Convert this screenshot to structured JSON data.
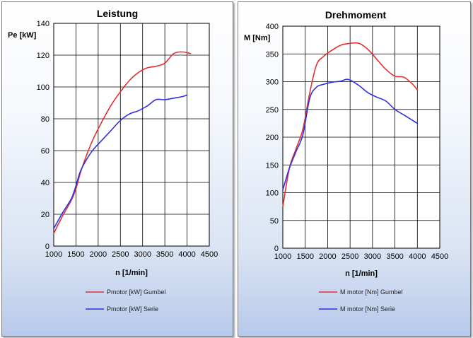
{
  "chart_data": [
    {
      "type": "line",
      "title": "Leistung",
      "xlabel": "n [1/min]",
      "ylabel": "Pe [kW]",
      "xlim": [
        1000,
        4500
      ],
      "ylim": [
        0,
        140
      ],
      "xticks": [
        1000,
        1500,
        2000,
        2500,
        3000,
        3500,
        4000,
        4500
      ],
      "yticks": [
        0,
        20,
        40,
        60,
        80,
        100,
        120,
        140
      ],
      "legend_position": "bottom-center",
      "grid": true,
      "series": [
        {
          "name": "Pmotor [kW] Gumbel",
          "color": "#e03030",
          "x": [
            1000,
            1200,
            1400,
            1500,
            1600,
            1750,
            1900,
            2100,
            2300,
            2500,
            2700,
            2900,
            3100,
            3300,
            3500,
            3700,
            3900,
            4080
          ],
          "y": [
            8,
            19,
            29,
            36,
            46,
            58,
            68,
            79,
            89,
            97,
            104,
            109,
            112,
            113,
            115,
            121,
            122,
            121
          ]
        },
        {
          "name": "Pmotor [kW] Serie",
          "color": "#3030e0",
          "x": [
            1000,
            1200,
            1400,
            1500,
            1600,
            1750,
            1900,
            2100,
            2300,
            2500,
            2700,
            2900,
            3100,
            3300,
            3500,
            3700,
            3900,
            4000
          ],
          "y": [
            11,
            21,
            30,
            38,
            47,
            55,
            61,
            67,
            73,
            79,
            83,
            85,
            88,
            92,
            92,
            93,
            94,
            95
          ]
        }
      ]
    },
    {
      "type": "line",
      "title": "Drehmoment",
      "xlabel": "n [1/min]",
      "ylabel": "M [Nm]",
      "xlim": [
        1000,
        4500
      ],
      "ylim": [
        0,
        400
      ],
      "xticks": [
        1000,
        1500,
        2000,
        2500,
        3000,
        3500,
        4000,
        4500
      ],
      "yticks": [
        0,
        50,
        100,
        150,
        200,
        250,
        300,
        350,
        400
      ],
      "legend_position": "bottom-center",
      "grid": true,
      "series": [
        {
          "name": "M motor [Nm] Gumbel",
          "color": "#e03030",
          "x": [
            1000,
            1150,
            1300,
            1450,
            1600,
            1750,
            1900,
            2100,
            2300,
            2500,
            2700,
            2900,
            3100,
            3300,
            3500,
            3700,
            3900,
            4000
          ],
          "y": [
            75,
            145,
            180,
            215,
            280,
            330,
            345,
            357,
            366,
            369,
            369,
            358,
            340,
            322,
            310,
            308,
            295,
            285
          ]
        },
        {
          "name": "M motor [Nm] Serie",
          "color": "#3030e0",
          "x": [
            1000,
            1150,
            1300,
            1450,
            1600,
            1750,
            1900,
            2100,
            2300,
            2400,
            2500,
            2700,
            2900,
            3100,
            3300,
            3500,
            3700,
            3900,
            4000
          ],
          "y": [
            105,
            145,
            175,
            205,
            270,
            290,
            295,
            299,
            301,
            304,
            303,
            293,
            280,
            272,
            265,
            250,
            240,
            230,
            225
          ]
        }
      ]
    }
  ]
}
